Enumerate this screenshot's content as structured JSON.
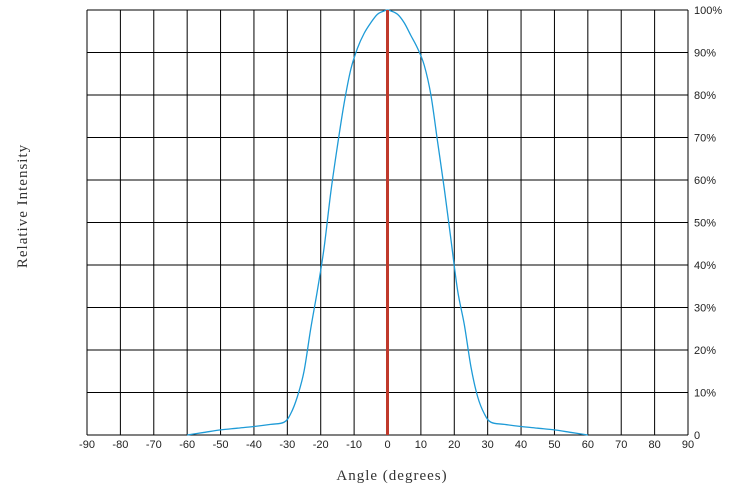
{
  "chart_data": {
    "type": "line",
    "title": "",
    "xlabel": "Angle (degrees)",
    "ylabel": "Relative Intensity",
    "xlim": [
      -90,
      90
    ],
    "ylim": [
      0,
      100
    ],
    "x_ticks": [
      "-90",
      "-80",
      "-70",
      "-60",
      "-50",
      "-40",
      "-30",
      "-20",
      "-10",
      "0",
      "10",
      "20",
      "30",
      "40",
      "50",
      "60",
      "70",
      "80",
      "90"
    ],
    "y_ticks": [
      "0",
      "10%",
      "20%",
      "30%",
      "40%",
      "50%",
      "60%",
      "70%",
      "80%",
      "90%",
      "100%"
    ],
    "y_axis_side": "right",
    "grid": true,
    "series": [
      {
        "color": "#1e9bd7",
        "x": [
          -60,
          -55,
          -50,
          -45,
          -40,
          -35,
          -31,
          -29,
          -27,
          -25,
          -23,
          -21,
          -19,
          -17,
          -15,
          -13,
          -11,
          -9,
          -7,
          -5,
          -3,
          -1,
          0,
          1,
          3,
          5,
          7,
          9,
          11,
          13,
          15,
          17,
          19,
          21,
          23,
          25,
          27,
          29,
          31,
          35,
          40,
          45,
          50,
          55,
          60
        ],
        "y": [
          0,
          0.6,
          1.2,
          1.6,
          2.0,
          2.5,
          3.0,
          5.0,
          9.0,
          15.0,
          25.0,
          34.0,
          44.0,
          57.0,
          68.0,
          78.0,
          86.0,
          91.0,
          94.5,
          97.0,
          99.0,
          99.8,
          100,
          99.8,
          99.0,
          97.0,
          94.0,
          91.0,
          87.0,
          80.0,
          69.0,
          58.0,
          46.0,
          34.0,
          26.0,
          16.0,
          9.0,
          5.0,
          3.0,
          2.5,
          2.0,
          1.6,
          1.2,
          0.6,
          0
        ]
      }
    ],
    "reference_line": {
      "x": 0,
      "color": "#c0392b"
    },
    "grid_color": "#000000"
  }
}
